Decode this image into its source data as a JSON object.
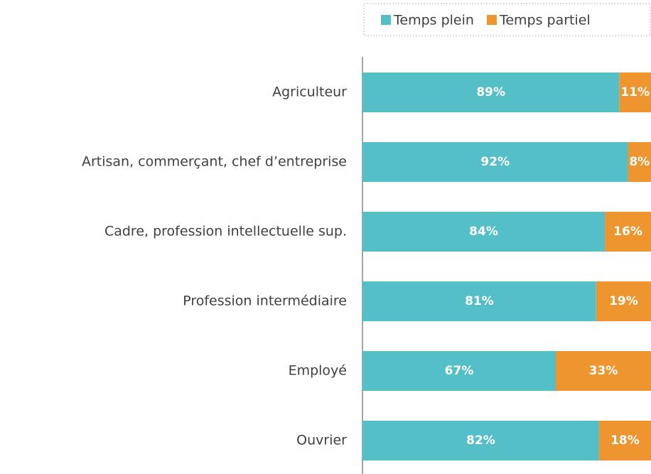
{
  "chart_data": {
    "type": "stacked_barh",
    "categories": [
      "Agriculteur",
      "Artisan, commerçant, chef d’entreprise",
      "Cadre, profession intellectuelle sup.",
      "Profession intermédiaire",
      "Employé",
      "Ouvrier"
    ],
    "series": [
      {
        "name": "Temps plein",
        "color": "#55bfc7",
        "values": [
          89,
          92,
          84,
          81,
          67,
          82
        ],
        "value_labels": [
          "89%",
          "92%",
          "84%",
          "81%",
          "67%",
          "82%"
        ]
      },
      {
        "name": "Temps partiel",
        "color": "#ef952f",
        "values": [
          11,
          8,
          16,
          19,
          33,
          18
        ],
        "value_labels": [
          "11%",
          "8%",
          "16%",
          "19%",
          "33%",
          "18%"
        ]
      }
    ],
    "xlim": [
      0,
      100
    ],
    "legend": "top-right"
  }
}
